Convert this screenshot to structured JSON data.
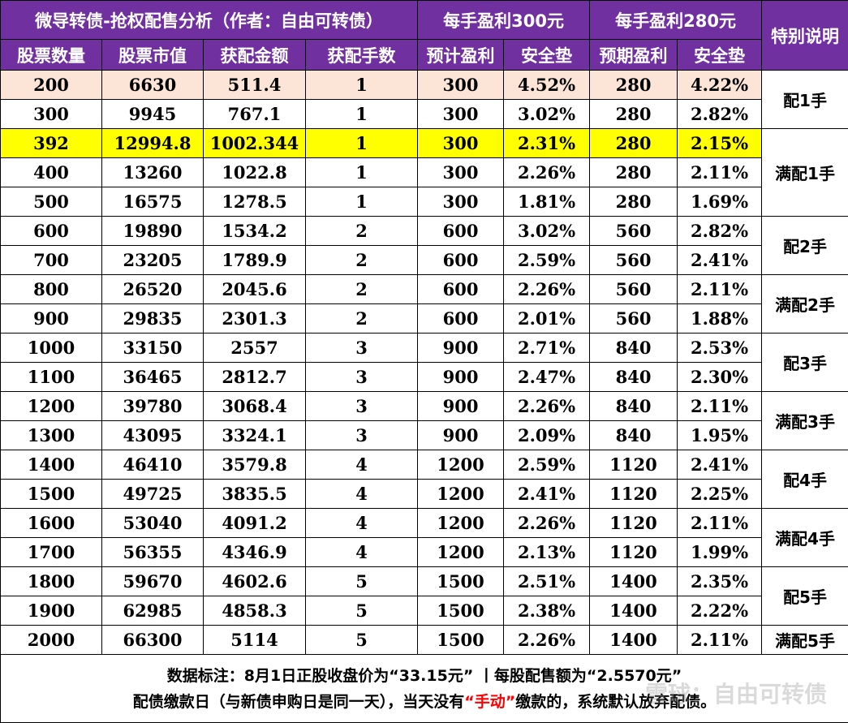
{
  "header": {
    "title": "微导转债-抢权配售分析（作者：自由可转债）",
    "group300": "每手盈利300元",
    "group280": "每手盈利280元",
    "special": "特别说明",
    "col_shares": "股票数量",
    "col_value": "股票市值",
    "col_amount": "获配金额",
    "col_lots": "获配手数",
    "col_profit300": "预计盈利",
    "col_safety300": "安全垫",
    "col_profit280": "预期盈利",
    "col_safety280": "安全垫"
  },
  "rows": [
    [
      "200",
      "6630",
      "511.4",
      "1",
      "300",
      "4.52%",
      "280",
      "4.22%"
    ],
    [
      "300",
      "9945",
      "767.1",
      "1",
      "300",
      "3.02%",
      "280",
      "2.82%"
    ],
    [
      "392",
      "12994.8",
      "1002.344",
      "1",
      "300",
      "2.31%",
      "280",
      "2.15%"
    ],
    [
      "400",
      "13260",
      "1022.8",
      "1",
      "300",
      "2.26%",
      "280",
      "2.11%"
    ],
    [
      "500",
      "16575",
      "1278.5",
      "1",
      "300",
      "1.81%",
      "280",
      "1.69%"
    ],
    [
      "600",
      "19890",
      "1534.2",
      "2",
      "600",
      "3.02%",
      "560",
      "2.82%"
    ],
    [
      "700",
      "23205",
      "1789.9",
      "2",
      "600",
      "2.59%",
      "560",
      "2.41%"
    ],
    [
      "800",
      "26520",
      "2045.6",
      "2",
      "600",
      "2.26%",
      "560",
      "2.11%"
    ],
    [
      "900",
      "29835",
      "2301.3",
      "2",
      "600",
      "2.01%",
      "560",
      "1.88%"
    ],
    [
      "1000",
      "33150",
      "2557",
      "3",
      "900",
      "2.71%",
      "840",
      "2.53%"
    ],
    [
      "1100",
      "36465",
      "2812.7",
      "3",
      "900",
      "2.47%",
      "840",
      "2.30%"
    ],
    [
      "1200",
      "39780",
      "3068.4",
      "3",
      "900",
      "2.26%",
      "840",
      "2.11%"
    ],
    [
      "1300",
      "43095",
      "3324.1",
      "3",
      "900",
      "2.09%",
      "840",
      "1.95%"
    ],
    [
      "1400",
      "46410",
      "3579.8",
      "4",
      "1200",
      "2.59%",
      "1120",
      "2.41%"
    ],
    [
      "1500",
      "49725",
      "3835.5",
      "4",
      "1200",
      "2.41%",
      "1120",
      "2.25%"
    ],
    [
      "1600",
      "53040",
      "4091.2",
      "4",
      "1200",
      "2.26%",
      "1120",
      "2.11%"
    ],
    [
      "1700",
      "56355",
      "4346.9",
      "4",
      "1200",
      "2.13%",
      "1120",
      "1.99%"
    ],
    [
      "1800",
      "59670",
      "4602.6",
      "5",
      "1500",
      "2.51%",
      "1400",
      "2.35%"
    ],
    [
      "1900",
      "62985",
      "4858.3",
      "5",
      "1500",
      "2.38%",
      "1400",
      "2.22%"
    ],
    [
      "2000",
      "66300",
      "5114",
      "5",
      "1500",
      "2.26%",
      "1400",
      "2.11%"
    ]
  ],
  "notes": [
    {
      "label": "配1手",
      "start": 0,
      "span": 2
    },
    {
      "label": "满配1手",
      "start": 2,
      "span": 3
    },
    {
      "label": "配2手",
      "start": 5,
      "span": 2
    },
    {
      "label": "满配2手",
      "start": 7,
      "span": 2
    },
    {
      "label": "配3手",
      "start": 9,
      "span": 2
    },
    {
      "label": "满配3手",
      "start": 11,
      "span": 2
    },
    {
      "label": "配4手",
      "start": 13,
      "span": 2
    },
    {
      "label": "满配4手",
      "start": 15,
      "span": 2
    },
    {
      "label": "配5手",
      "start": 17,
      "span": 2
    },
    {
      "label": "满配5手",
      "start": 19,
      "span": 1
    }
  ],
  "highlight": {
    "first_row": 0,
    "yellow_row": 2
  },
  "colors": {
    "header_bg": "#7030a0",
    "first_row_bg": "#fce4d6",
    "yellow_bg": "#ffff00",
    "red_text": "#ff0000"
  },
  "footer": {
    "line1": "数据标注：8月1日正股收盘价为“33.15元”  丨每股配售额为“2.5570元”",
    "line2_a": "配债缴款日（与新债申购日是同一天），当天没有",
    "line2_red": "“手动”",
    "line2_b": "缴款的，系统默认放弃配债。"
  },
  "watermark": "雪球：自由可转债"
}
